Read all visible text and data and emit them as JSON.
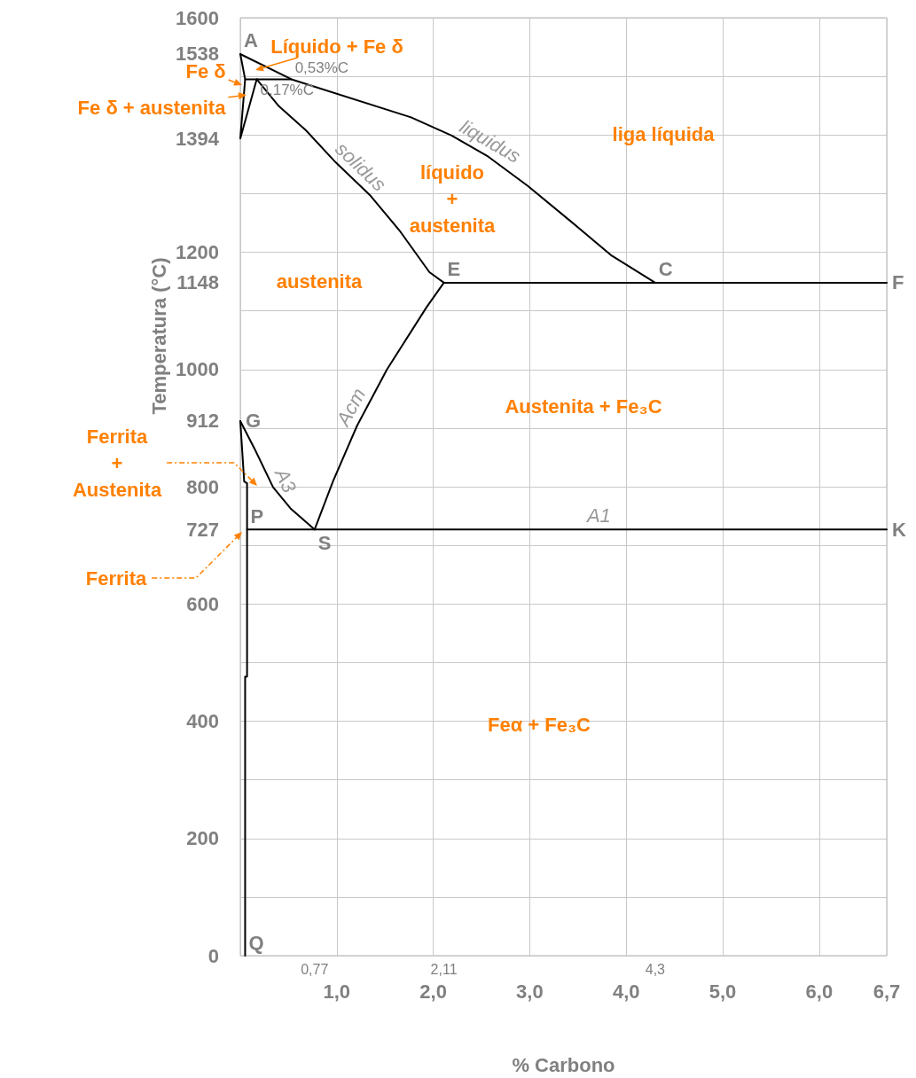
{
  "chart_data": {
    "type": "line",
    "xlabel": "% Carbono",
    "ylabel": "Temperatura (°C)",
    "xlim": [
      0,
      6.7
    ],
    "ylim": [
      0,
      1600
    ],
    "xticks": [
      {
        "value": 1,
        "label": "1,0"
      },
      {
        "value": 2,
        "label": "2,0"
      },
      {
        "value": 3,
        "label": "3,0"
      },
      {
        "value": 4,
        "label": "4,0"
      },
      {
        "value": 5,
        "label": "5,0"
      },
      {
        "value": 6,
        "label": "6,0"
      },
      {
        "value": 6.7,
        "label": "6,7"
      }
    ],
    "x2lim": [
      0,
      6.7
    ],
    "x2ticks": [
      {
        "value": 0.77,
        "label": "0,77"
      },
      {
        "value": 2.11,
        "label": "2,11"
      },
      {
        "value": 4.3,
        "label": "4,3"
      }
    ],
    "yticks": [
      0,
      {
        "value": 100,
        "label": null
      },
      200,
      {
        "value": 300,
        "label": null
      },
      400,
      {
        "value": 500,
        "label": null
      },
      600,
      {
        "value": 700,
        "label": null
      },
      727,
      800,
      {
        "value": 900,
        "label": null
      },
      912,
      1000,
      {
        "value": 1100,
        "label": null
      },
      1148,
      1200,
      {
        "value": 1300,
        "label": null
      },
      1394,
      {
        "value": 1400,
        "label": null
      },
      {
        "value": 1500,
        "label": null
      },
      1538,
      1600
    ],
    "grid": true,
    "marker": "none",
    "line_style": "solid",
    "series": [
      {
        "name": "liquidus",
        "color": "#000000",
        "x": [
          0,
          0.53,
          1.77,
          2.19,
          2.57,
          2.98,
          3.43,
          3.85,
          4.3
        ],
        "values": [
          1538,
          1495,
          1430,
          1399,
          1363,
          1313,
          1252,
          1194,
          1148
        ],
        "value_labels": [
          "A",
          null,
          null,
          null,
          null,
          null,
          null,
          null,
          "C"
        ]
      },
      {
        "name": "solidus",
        "color": "#000000",
        "x": [
          0,
          0.05,
          0.17,
          0.4,
          0.68,
          0.99,
          1.34,
          1.65,
          1.96,
          2.11
        ],
        "values": [
          1538,
          1495,
          1495,
          1449,
          1408,
          1353,
          1298,
          1237,
          1166,
          1148
        ],
        "value_labels": [
          null,
          null,
          null,
          null,
          null,
          null,
          null,
          null,
          null,
          "E"
        ]
      },
      {
        "color": "#000000",
        "x": [
          0.17,
          0.53
        ],
        "values": [
          1495,
          1495
        ]
      },
      {
        "color": "#000000",
        "x": [
          0.05,
          0,
          0.17
        ],
        "values": [
          1495,
          1394,
          1495
        ]
      },
      {
        "color": "#000000",
        "x": [
          2.11,
          4.3,
          6.7
        ],
        "values": [
          1148,
          1148,
          1148
        ],
        "value_labels": [
          null,
          null,
          "F"
        ]
      },
      {
        "name": "Acm",
        "color": "#000000",
        "x": [
          2.11,
          1.93,
          1.52,
          1.21,
          0.96,
          0.77
        ],
        "values": [
          1148,
          1106,
          1000,
          904,
          809,
          727
        ]
      },
      {
        "name": "A3",
        "color": "#000000",
        "x": [
          0,
          0.15,
          0.34,
          0.52,
          0.77
        ],
        "values": [
          912,
          864,
          799,
          763,
          727
        ],
        "value_labels": [
          "G",
          null,
          null,
          null,
          null
        ]
      },
      {
        "color": "#000000",
        "x": [
          0,
          0.04,
          0.07,
          0.07,
          0.05,
          0.05
        ],
        "values": [
          912,
          809,
          806,
          476,
          476,
          0
        ],
        "value_labels": [
          null,
          null,
          null,
          null,
          null,
          "Q"
        ]
      },
      {
        "name": "A1",
        "color": "#000000",
        "x": [
          0.07,
          0.77,
          6.7
        ],
        "values": [
          727,
          727,
          727
        ],
        "value_labels": [
          "P",
          "S",
          "K"
        ]
      }
    ],
    "annotations": [
      "Líquido + Fe δ",
      "Fe δ",
      "Fe δ + austenita",
      "Ferrita\n+\nAustenita",
      "Ferrita",
      "liga líquida",
      "líquido\n+\naustenita",
      "austenita",
      "Austenita + Fe₃C",
      "Feα + Fe₃C",
      {
        "text": "0,53%C",
        "x": 0.53,
        "y": 1495
      },
      {
        "text": "0,17%C",
        "x": 0.17,
        "y": 1495
      }
    ]
  }
}
